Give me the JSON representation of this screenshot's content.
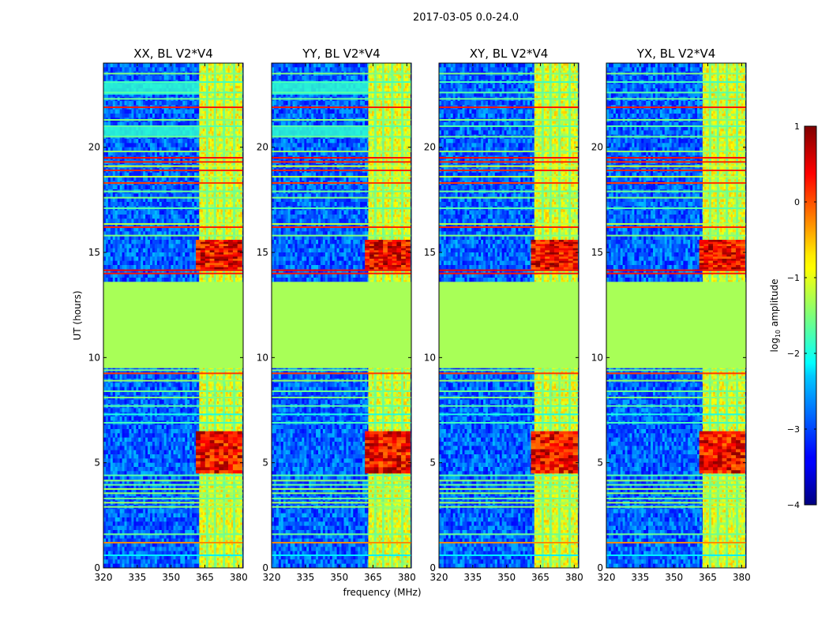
{
  "chart_data": {
    "type": "heatmap",
    "suptitle": "2017-03-05 0.0-24.0",
    "xlabel": "frequency (MHz)",
    "ylabel": "UT (hours)",
    "xlim": [
      320,
      382
    ],
    "ylim": [
      0,
      24
    ],
    "xticks": [
      320,
      335,
      350,
      365,
      380
    ],
    "yticks": [
      0,
      5,
      10,
      15,
      20
    ],
    "panels": [
      {
        "title": "XX, BL V2*V4",
        "burst_shift": 0.0
      },
      {
        "title": "YY, BL V2*V4",
        "burst_shift": 0.4
      },
      {
        "title": "XY, BL V2*V4",
        "burst_shift": -0.2
      },
      {
        "title": "YX, BL V2*V4",
        "burst_shift": 0.2
      }
    ],
    "colorbar": {
      "label_prefix": "log",
      "label_sub": "10",
      "label_suffix": " amplitude",
      "range": [
        -4,
        1
      ],
      "ticks": [
        1,
        0,
        -1,
        -2,
        -3,
        -4
      ],
      "cmap": "jet"
    },
    "flagged_gap_hours": [
      9.5,
      13.6
    ],
    "flagged_value": -1.3,
    "background_value": -2.9,
    "rfi_band_mhz": [
      362.5,
      381.5
    ],
    "rfi_value": -1.0,
    "bright_channels_mhz": [
      366,
      369.5,
      373.5,
      378
    ],
    "burst_times_hours": [
      {
        "start": 4.5,
        "end": 6.5,
        "value": 0.35
      },
      {
        "start": 14.2,
        "end": 15.6,
        "value": 0.4
      }
    ],
    "horizontal_rfi_lines": [
      {
        "t": 0.6,
        "value": -2.2
      },
      {
        "t": 1.2,
        "value": -0.3
      },
      {
        "t": 1.6,
        "value": -1.6
      },
      {
        "t": 2.9,
        "value": -1.4
      },
      {
        "t": 3.1,
        "value": -1.3
      },
      {
        "t": 3.3,
        "value": -1.6
      },
      {
        "t": 3.55,
        "value": -1.4
      },
      {
        "t": 3.75,
        "value": -1.3
      },
      {
        "t": 3.95,
        "value": -1.6
      },
      {
        "t": 4.15,
        "value": -1.4
      },
      {
        "t": 4.4,
        "value": -1.7
      },
      {
        "t": 6.9,
        "value": -1.8
      },
      {
        "t": 7.3,
        "value": -2.0
      },
      {
        "t": 7.7,
        "value": -1.7
      },
      {
        "t": 8.1,
        "value": -1.5
      },
      {
        "t": 8.4,
        "value": -1.6
      },
      {
        "t": 8.9,
        "value": -1.4
      },
      {
        "t": 9.25,
        "value": 0.1
      },
      {
        "t": 9.4,
        "value": -1.5
      },
      {
        "t": 14.0,
        "value": 0.3
      },
      {
        "t": 14.15,
        "value": 0.4
      },
      {
        "t": 15.8,
        "value": -1.5
      },
      {
        "t": 16.2,
        "value": 0.2
      },
      {
        "t": 16.35,
        "value": -1.2
      },
      {
        "t": 17.1,
        "value": -1.7
      },
      {
        "t": 17.6,
        "value": -1.5
      },
      {
        "t": 17.9,
        "value": -1.6
      },
      {
        "t": 18.3,
        "value": 0.1
      },
      {
        "t": 18.6,
        "value": -1.2
      },
      {
        "t": 18.9,
        "value": 0.2
      },
      {
        "t": 19.1,
        "value": -1.1
      },
      {
        "t": 19.3,
        "value": 0.2
      },
      {
        "t": 19.5,
        "value": 0.3
      },
      {
        "t": 19.8,
        "value": -1.4
      },
      {
        "t": 20.5,
        "value": -1.6
      },
      {
        "t": 21.0,
        "value": -1.7
      },
      {
        "t": 21.3,
        "value": -1.5
      },
      {
        "t": 21.9,
        "value": 0.25
      },
      {
        "t": 22.3,
        "value": -1.6
      },
      {
        "t": 22.6,
        "value": -1.7
      },
      {
        "t": 23.1,
        "value": -1.8
      },
      {
        "t": 23.5,
        "value": -1.5
      }
    ],
    "horizontal_bands": [
      {
        "start": 20.5,
        "end": 21.0,
        "value": -1.9,
        "panels": [
          0,
          1
        ]
      },
      {
        "start": 22.5,
        "end": 23.1,
        "value": -1.9,
        "panels": [
          0,
          1
        ]
      }
    ]
  }
}
